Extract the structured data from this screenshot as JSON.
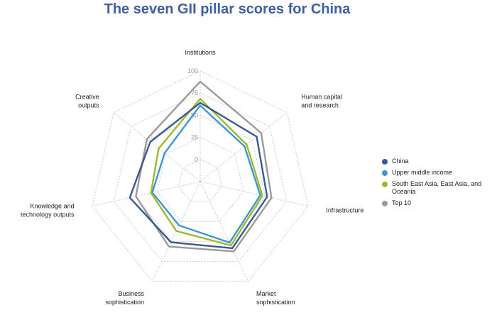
{
  "chart_data": {
    "type": "radar",
    "title": "The seven GII pillar scores for China",
    "axes": [
      [
        "Institutions"
      ],
      [
        "Human capital",
        "and research"
      ],
      [
        "Infrastructure"
      ],
      [
        "Market",
        "sophistication"
      ],
      [
        "Business",
        "sophistication"
      ],
      [
        "Knowledge and",
        "technology outputs"
      ],
      [
        "Creative",
        "outputs"
      ]
    ],
    "ticks": [
      "0",
      "25",
      "50",
      "75",
      "100"
    ],
    "rlim": [
      0,
      100
    ],
    "grid": true,
    "legend_position": "right",
    "series": [
      {
        "name": "China",
        "color": "#3c5896",
        "values": [
          64.0,
          56.5,
          52.5,
          58.5,
          51.0,
          56.5,
          47.0
        ]
      },
      {
        "name": "Upper middle income",
        "color": "#3f97d0",
        "values": [
          61.0,
          39.0,
          44.5,
          51.5,
          30.0,
          30.5,
          26.5
        ]
      },
      {
        "name": "South East Asia, East Asia, and Oceania",
        "color": "#9bbb2e",
        "values": [
          68.5,
          42.0,
          47.0,
          55.0,
          37.0,
          32.0,
          35.0
        ]
      },
      {
        "name": "Top 10",
        "color": "#9a9a9a",
        "values": [
          88.0,
          63.0,
          57.5,
          62.5,
          56.5,
          49.5,
          52.0
        ]
      }
    ]
  }
}
